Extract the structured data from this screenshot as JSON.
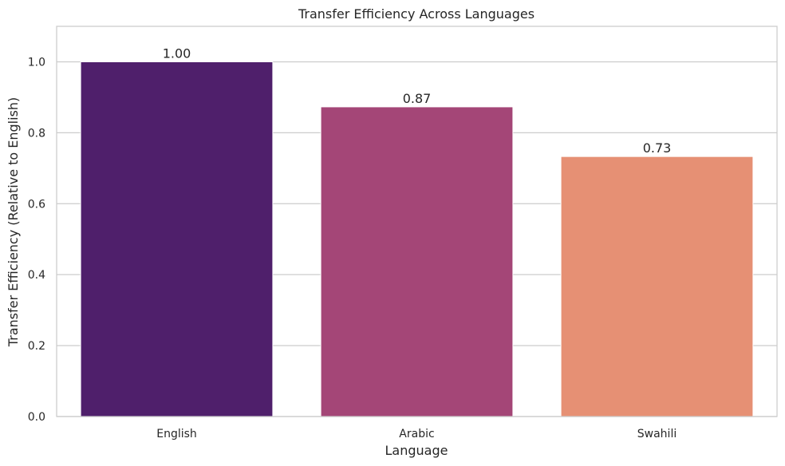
{
  "chart_data": {
    "type": "bar",
    "title": "Transfer Efficiency Across Languages",
    "xlabel": "Language",
    "ylabel": "Transfer Efficiency (Relative to English)",
    "categories": [
      "English",
      "Arabic",
      "Swahili"
    ],
    "values": [
      1.0,
      0.873,
      0.733
    ],
    "data_labels": [
      "1.00",
      "0.87",
      "0.73"
    ],
    "colors": [
      "#4f1f6b",
      "#a44677",
      "#e69074"
    ],
    "ylim": [
      0,
      1.1
    ],
    "yticks": [
      0.0,
      0.2,
      0.4,
      0.6,
      0.8,
      1.0
    ],
    "ytick_labels": [
      "0.0",
      "0.2",
      "0.4",
      "0.6",
      "0.8",
      "1.0"
    ],
    "grid": true,
    "legend": "none"
  }
}
